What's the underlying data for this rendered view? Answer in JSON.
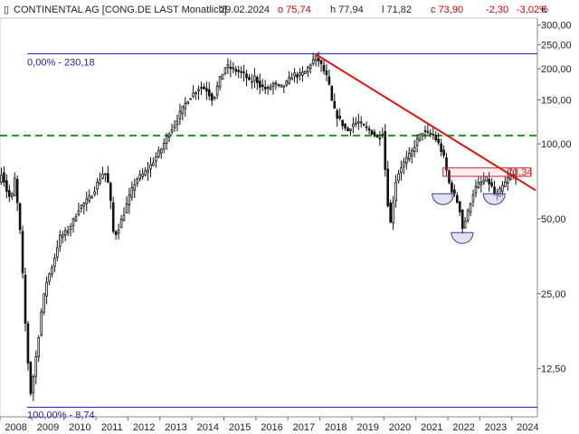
{
  "header": {
    "instrument": "CONTINENTAL AG [CONG.DE LAST Monatlich]",
    "date": "29.02.2024",
    "open": "o 75,74",
    "high": "h 77,94",
    "low": "l 71,82",
    "close": "c 73,90",
    "change": "-2,30",
    "change_pct": "-3,02%"
  },
  "currency": "€",
  "chart_data": {
    "type": "candlestick",
    "scale": "log",
    "ylim": [
      8.0,
      320.0
    ],
    "xlim": [
      2008.0,
      2024.8
    ],
    "y_ticks": [
      {
        "value": 12.5,
        "label": "12,50"
      },
      {
        "value": 25,
        "label": "25,00"
      },
      {
        "value": 50,
        "label": "50,00"
      },
      {
        "value": 100,
        "label": "100,00"
      },
      {
        "value": 150,
        "label": "150,00"
      },
      {
        "value": 200,
        "label": "200,00"
      },
      {
        "value": 250,
        "label": "250,00"
      },
      {
        "value": 300,
        "label": "300,00"
      }
    ],
    "x_ticks": [
      "2008",
      "2009",
      "2010",
      "2011",
      "2012",
      "2013",
      "2014",
      "2015",
      "2016",
      "2017",
      "2018",
      "2019",
      "2020",
      "2021",
      "2022",
      "2023",
      "2024"
    ],
    "fib_levels": [
      {
        "label": "0,00% - 230,18",
        "value": 230.18
      },
      {
        "label": "100,00% - 8,74",
        "value": 8.74
      }
    ],
    "resistance_level": 108,
    "trendline": [
      {
        "x": 2017.85,
        "y": 230
      },
      {
        "x": 2024.75,
        "y": 65
      }
    ],
    "box": {
      "x0": 2021.85,
      "x1": 2024.6,
      "y0": 74,
      "y1": 80
    },
    "box_label": "73,34",
    "shoulders": [
      {
        "x": 2021.85,
        "y": 63
      },
      {
        "x": 2022.45,
        "y": 44
      },
      {
        "x": 2023.45,
        "y": 63
      }
    ],
    "waypoints": [
      [
        2008.0,
        70
      ],
      [
        2008.1,
        78
      ],
      [
        2008.2,
        68
      ],
      [
        2008.3,
        62
      ],
      [
        2008.4,
        60
      ],
      [
        2008.5,
        72
      ],
      [
        2008.6,
        55
      ],
      [
        2008.7,
        40
      ],
      [
        2008.8,
        22
      ],
      [
        2008.9,
        14
      ],
      [
        2009.0,
        10
      ],
      [
        2009.1,
        12
      ],
      [
        2009.2,
        15
      ],
      [
        2009.35,
        22
      ],
      [
        2009.5,
        28
      ],
      [
        2009.7,
        33
      ],
      [
        2009.9,
        42
      ],
      [
        2010.1,
        44
      ],
      [
        2010.3,
        48
      ],
      [
        2010.5,
        55
      ],
      [
        2010.7,
        58
      ],
      [
        2010.9,
        62
      ],
      [
        2011.1,
        70
      ],
      [
        2011.3,
        78
      ],
      [
        2011.4,
        72
      ],
      [
        2011.5,
        58
      ],
      [
        2011.6,
        42
      ],
      [
        2011.75,
        46
      ],
      [
        2011.9,
        52
      ],
      [
        2012.1,
        62
      ],
      [
        2012.3,
        72
      ],
      [
        2012.5,
        75
      ],
      [
        2012.7,
        80
      ],
      [
        2012.9,
        88
      ],
      [
        2013.1,
        96
      ],
      [
        2013.3,
        110
      ],
      [
        2013.5,
        120
      ],
      [
        2013.7,
        135
      ],
      [
        2013.9,
        150
      ],
      [
        2014.1,
        160
      ],
      [
        2014.3,
        170
      ],
      [
        2014.5,
        165
      ],
      [
        2014.7,
        150
      ],
      [
        2014.9,
        180
      ],
      [
        2015.1,
        205
      ],
      [
        2015.3,
        200
      ],
      [
        2015.5,
        195
      ],
      [
        2015.7,
        190
      ],
      [
        2015.85,
        175
      ],
      [
        2016.0,
        185
      ],
      [
        2016.2,
        170
      ],
      [
        2016.4,
        165
      ],
      [
        2016.6,
        175
      ],
      [
        2016.8,
        168
      ],
      [
        2017.0,
        175
      ],
      [
        2017.2,
        190
      ],
      [
        2017.4,
        188
      ],
      [
        2017.6,
        195
      ],
      [
        2017.8,
        215
      ],
      [
        2017.95,
        222
      ],
      [
        2018.1,
        205
      ],
      [
        2018.3,
        180
      ],
      [
        2018.45,
        140
      ],
      [
        2018.6,
        128
      ],
      [
        2018.75,
        120
      ],
      [
        2018.9,
        112
      ],
      [
        2019.05,
        120
      ],
      [
        2019.25,
        122
      ],
      [
        2019.45,
        116
      ],
      [
        2019.65,
        112
      ],
      [
        2019.85,
        105
      ],
      [
        2020.0,
        112
      ],
      [
        2020.15,
        60
      ],
      [
        2020.25,
        48
      ],
      [
        2020.4,
        70
      ],
      [
        2020.55,
        80
      ],
      [
        2020.7,
        85
      ],
      [
        2020.9,
        92
      ],
      [
        2021.05,
        102
      ],
      [
        2021.25,
        112
      ],
      [
        2021.45,
        110
      ],
      [
        2021.6,
        108
      ],
      [
        2021.75,
        100
      ],
      [
        2021.9,
        90
      ],
      [
        2022.0,
        78
      ],
      [
        2022.1,
        68
      ],
      [
        2022.25,
        62
      ],
      [
        2022.4,
        56
      ],
      [
        2022.5,
        46
      ],
      [
        2022.65,
        52
      ],
      [
        2022.8,
        62
      ],
      [
        2022.95,
        68
      ],
      [
        2023.1,
        70
      ],
      [
        2023.25,
        72
      ],
      [
        2023.4,
        68
      ],
      [
        2023.55,
        60
      ],
      [
        2023.7,
        66
      ],
      [
        2023.85,
        70
      ],
      [
        2024.0,
        75
      ],
      [
        2024.1,
        73.9
      ]
    ]
  }
}
